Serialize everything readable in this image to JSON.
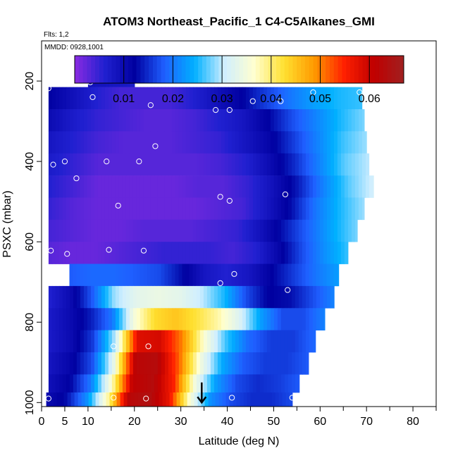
{
  "chart_data": {
    "type": "heatmap",
    "title": "ATOM3 Northeast_Pacific_1 C4-C5Alkanes_GMI",
    "annotations": {
      "flights": "Flts: 1,2",
      "dates": "MMDD: 0928,1001"
    },
    "xlabel": "Latitude (deg N)",
    "ylabel": "PSXC (mbar)",
    "xlim": [
      0,
      85
    ],
    "ylim": [
      1010,
      100
    ],
    "y_inverted": true,
    "x_ticks": [
      0,
      5,
      10,
      20,
      30,
      40,
      50,
      60,
      70,
      80
    ],
    "x_ticklabels": [
      "0",
      "5",
      "10",
      "20",
      "30",
      "40",
      "50",
      "60",
      "70",
      "80"
    ],
    "y_ticks": [
      200,
      400,
      600,
      800,
      1000
    ],
    "y_ticklabels": [
      "200",
      "400",
      "600",
      "800",
      "1000"
    ],
    "colorbar": {
      "range": [
        0.0,
        0.067
      ],
      "ticks": [
        0.01,
        0.02,
        0.03,
        0.04,
        0.05,
        0.06
      ],
      "ticklabels": [
        "0.01",
        "0.02",
        "0.03",
        "0.04",
        "0.05",
        "0.06"
      ],
      "colors": [
        "#8a2be2",
        "#2020d0",
        "#0000a0",
        "#1f5fff",
        "#00b0ff",
        "#cfeeff",
        "#ffffd0",
        "#ffe030",
        "#ff9a00",
        "#ff2000",
        "#c00000",
        "#a02020"
      ]
    },
    "rows": [
      {
        "p_top": 170,
        "p_bot": 215,
        "lat_start": 10,
        "lat_end": 20,
        "values": [
          0.009,
          0.007
        ]
      },
      {
        "p_top": 215,
        "p_bot": 270,
        "lat_start": 1.5,
        "lat_end": 69,
        "values": [
          0.012,
          0.009,
          0.006,
          0.004,
          0.004,
          0.004,
          0.006,
          0.009,
          0.012,
          0.016,
          0.02,
          0.023,
          0.025,
          0.026
        ]
      },
      {
        "p_top": 270,
        "p_bot": 325,
        "lat_start": 1.5,
        "lat_end": 69.5,
        "values": [
          0.01,
          0.007,
          0.005,
          0.004,
          0.003,
          0.003,
          0.004,
          0.006,
          0.008,
          0.012,
          0.017,
          0.021,
          0.025,
          0.028
        ]
      },
      {
        "p_top": 325,
        "p_bot": 380,
        "lat_start": 1.5,
        "lat_end": 70,
        "values": [
          0.008,
          0.006,
          0.004,
          0.003,
          0.003,
          0.003,
          0.004,
          0.005,
          0.008,
          0.011,
          0.016,
          0.021,
          0.026,
          0.029
        ]
      },
      {
        "p_top": 380,
        "p_bot": 435,
        "lat_start": 1.5,
        "lat_end": 70.5,
        "values": [
          0.007,
          0.005,
          0.003,
          0.003,
          0.003,
          0.003,
          0.003,
          0.004,
          0.006,
          0.01,
          0.015,
          0.021,
          0.027,
          0.03
        ]
      },
      {
        "p_top": 435,
        "p_bot": 490,
        "lat_start": 1.5,
        "lat_end": 71.5,
        "values": [
          0.006,
          0.004,
          0.002,
          0.002,
          0.002,
          0.002,
          0.003,
          0.003,
          0.005,
          0.009,
          0.014,
          0.021,
          0.027,
          0.031
        ]
      },
      {
        "p_top": 490,
        "p_bot": 545,
        "lat_start": 1.5,
        "lat_end": 69.5,
        "values": [
          0.005,
          0.003,
          0.002,
          0.002,
          0.002,
          0.002,
          0.002,
          0.003,
          0.004,
          0.008,
          0.013,
          0.02,
          0.025,
          0.029
        ]
      },
      {
        "p_top": 545,
        "p_bot": 600,
        "lat_start": 1.5,
        "lat_end": 68,
        "values": [
          0.004,
          0.003,
          0.002,
          0.002,
          0.003,
          0.003,
          0.003,
          0.004,
          0.005,
          0.009,
          0.014,
          0.019,
          0.024,
          0.028
        ]
      },
      {
        "p_top": 600,
        "p_bot": 655,
        "lat_start": 1.5,
        "lat_end": 66,
        "values": [
          0.003,
          0.002,
          0.002,
          0.003,
          0.004,
          0.005,
          0.005,
          0.005,
          0.004,
          0.006,
          0.011,
          0.017,
          0.022,
          0.026
        ]
      },
      {
        "p_top": 655,
        "p_bot": 710,
        "lat_start": 6,
        "lat_end": 64,
        "values": [
          0.018,
          0.019,
          0.019,
          0.018,
          0.017,
          0.013,
          0.008,
          0.006,
          0.008,
          0.012,
          0.016,
          0.02,
          0.023
        ]
      },
      {
        "p_top": 710,
        "p_bot": 765,
        "lat_start": 1.5,
        "lat_end": 63,
        "values": [
          0.006,
          0.01,
          0.018,
          0.029,
          0.033,
          0.034,
          0.033,
          0.03,
          0.025,
          0.017,
          0.012,
          0.013,
          0.017,
          0.021
        ]
      },
      {
        "p_top": 765,
        "p_bot": 820,
        "lat_start": 1.5,
        "lat_end": 61,
        "values": [
          0.007,
          0.01,
          0.014,
          0.02,
          0.035,
          0.043,
          0.045,
          0.042,
          0.038,
          0.032,
          0.023,
          0.017,
          0.017,
          0.021
        ]
      },
      {
        "p_top": 820,
        "p_bot": 875,
        "lat_start": 1.5,
        "lat_end": 59,
        "values": [
          0.007,
          0.01,
          0.016,
          0.03,
          0.058,
          0.059,
          0.05,
          0.036,
          0.026,
          0.019,
          0.016,
          0.016,
          0.019
        ]
      },
      {
        "p_top": 875,
        "p_bot": 930,
        "lat_start": 1.5,
        "lat_end": 57.5,
        "values": [
          0.008,
          0.011,
          0.017,
          0.033,
          0.062,
          0.063,
          0.052,
          0.035,
          0.024,
          0.018,
          0.016,
          0.016,
          0.018
        ]
      },
      {
        "p_top": 930,
        "p_bot": 975,
        "lat_start": 1.5,
        "lat_end": 55.5,
        "values": [
          0.009,
          0.012,
          0.02,
          0.036,
          0.061,
          0.063,
          0.055,
          0.035,
          0.023,
          0.017,
          0.015,
          0.016,
          0.018
        ]
      },
      {
        "p_top": 975,
        "p_bot": 1010,
        "lat_start": 1,
        "lat_end": 54,
        "values": [
          0.01,
          0.013,
          0.022,
          0.038,
          0.062,
          0.064,
          0.057,
          0.036,
          0.022,
          0.017,
          0.015,
          0.015,
          0.017
        ]
      }
    ],
    "points": [
      {
        "x": 1.5,
        "y": 218
      },
      {
        "x": 10.5,
        "y": 203
      },
      {
        "x": 19.5,
        "y": 198
      },
      {
        "x": 11,
        "y": 240
      },
      {
        "x": 23.5,
        "y": 260
      },
      {
        "x": 37.5,
        "y": 272
      },
      {
        "x": 40.5,
        "y": 272
      },
      {
        "x": 45.5,
        "y": 250
      },
      {
        "x": 51.5,
        "y": 250
      },
      {
        "x": 58.5,
        "y": 228
      },
      {
        "x": 68.5,
        "y": 228
      },
      {
        "x": 24.5,
        "y": 362
      },
      {
        "x": 2.5,
        "y": 408
      },
      {
        "x": 5,
        "y": 400
      },
      {
        "x": 14,
        "y": 400
      },
      {
        "x": 21,
        "y": 400
      },
      {
        "x": 7.5,
        "y": 442
      },
      {
        "x": 16.5,
        "y": 510
      },
      {
        "x": 38.5,
        "y": 488
      },
      {
        "x": 40.5,
        "y": 498
      },
      {
        "x": 52.5,
        "y": 482
      },
      {
        "x": 2,
        "y": 622
      },
      {
        "x": 5.5,
        "y": 630
      },
      {
        "x": 14.5,
        "y": 620
      },
      {
        "x": 22,
        "y": 622
      },
      {
        "x": 41.5,
        "y": 680
      },
      {
        "x": 38.5,
        "y": 703
      },
      {
        "x": 53,
        "y": 720
      },
      {
        "x": 15.5,
        "y": 860
      },
      {
        "x": 23,
        "y": 860
      },
      {
        "x": 1.5,
        "y": 990
      },
      {
        "x": 15.5,
        "y": 988
      },
      {
        "x": 22.5,
        "y": 990
      },
      {
        "x": 41,
        "y": 988
      },
      {
        "x": 54,
        "y": 988
      }
    ],
    "arrow": {
      "x": 34.5,
      "y_from": 950,
      "y_to": 1000
    }
  }
}
